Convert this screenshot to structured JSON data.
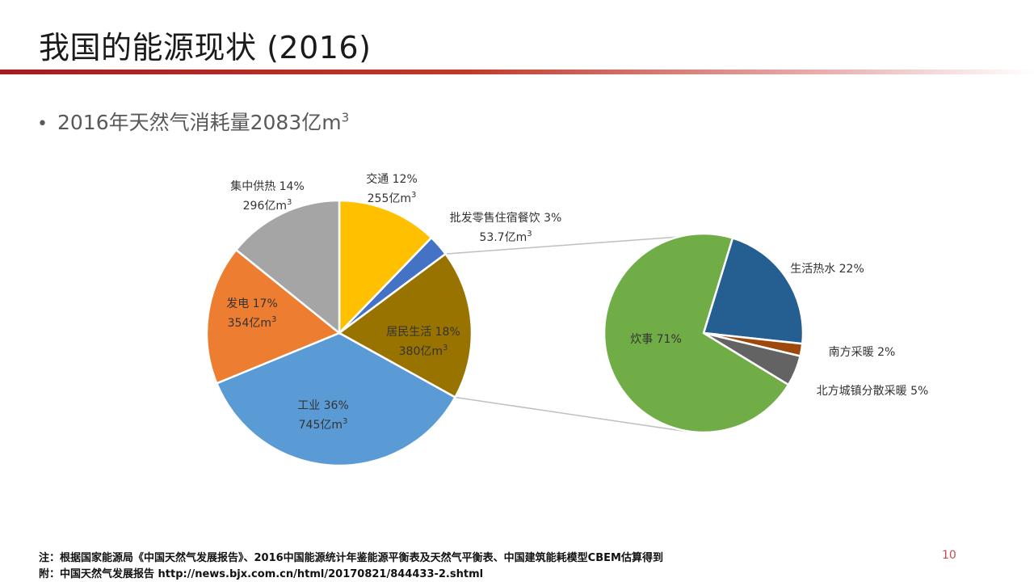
{
  "slide": {
    "title": "我国的能源现状 (2016)",
    "bullet_text": "2016年天然气消耗量2083亿m",
    "bullet_sup": "3",
    "page_number": "10",
    "notes": [
      "注：根据国家能源局《中国天然气发展报告》、2016中国能源统计年鉴能源平衡表及天然气平衡表、中国建筑能耗模型CBEM估算得到",
      "附：中国天然气发展报告 http://news.bjx.com.cn/html/20170821/844433-2.shtml"
    ]
  },
  "chart_data": [
    {
      "type": "pie",
      "unit": "亿m3",
      "slices": [
        {
          "name": "交通",
          "percent": "12%",
          "value": 255,
          "value_label": "255亿m",
          "color": "#ffc000"
        },
        {
          "name": "批发零售住宿餐饮",
          "percent": "3%",
          "value": 53.7,
          "value_label": "53.7亿m",
          "color": "#4472c4"
        },
        {
          "name": "居民生活",
          "percent": "18%",
          "value": 380,
          "value_label": "380亿m",
          "color": "#997300"
        },
        {
          "name": "工业",
          "percent": "36%",
          "value": 745,
          "value_label": "745亿m",
          "color": "#5b9bd5"
        },
        {
          "name": "发电",
          "percent": "17%",
          "value": 354,
          "value_label": "354亿m",
          "color": "#ed7d31"
        },
        {
          "name": "集中供热",
          "percent": "14%",
          "value": 296,
          "value_label": "296亿m",
          "color": "#a5a5a5"
        }
      ]
    },
    {
      "type": "pie",
      "parent_slice": "居民生活",
      "slices": [
        {
          "name": "生活热水",
          "percent": "22%",
          "value": 22,
          "color": "#255e91"
        },
        {
          "name": "南方采暖",
          "percent": "2%",
          "value": 2,
          "color": "#9e480e"
        },
        {
          "name": "北方城镇分散采暖",
          "percent": "5%",
          "value": 5,
          "color": "#636363"
        },
        {
          "name": "炊事",
          "percent": "71%",
          "value": 71,
          "color": "#70ad47"
        }
      ]
    }
  ]
}
